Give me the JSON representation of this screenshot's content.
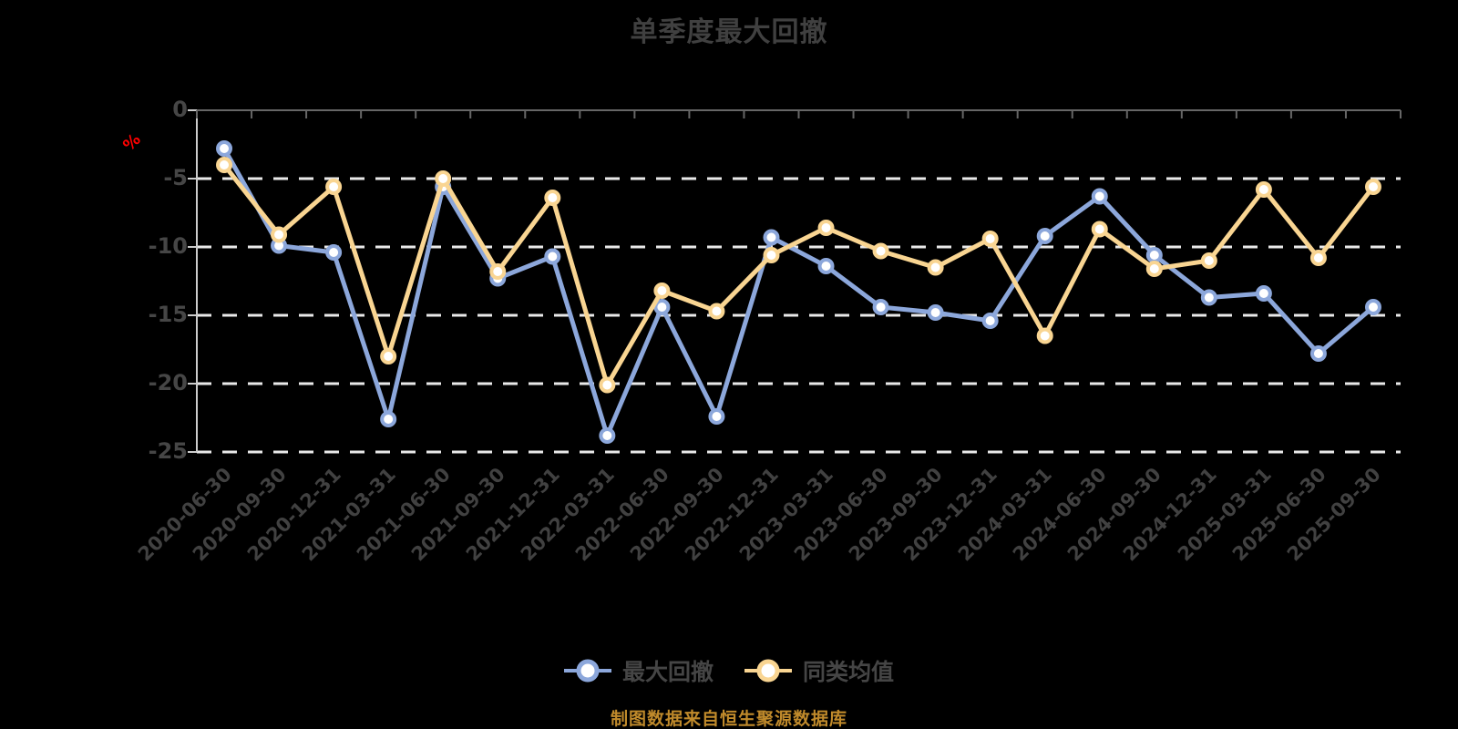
{
  "chart": {
    "title": "单季度最大回撤",
    "y_unit_label": "%",
    "source_note": "制图数据来自恒生聚源数据库"
  },
  "chart_data": {
    "type": "line",
    "title": "单季度最大回撤",
    "ylabel": "%",
    "ylim": [
      -25,
      0
    ],
    "yticks": [
      0,
      -5,
      -10,
      -15,
      -20,
      -25
    ],
    "grid": true,
    "legend_position": "bottom",
    "source_note": "制图数据来自恒生聚源数据库",
    "categories": [
      "2020-06-30",
      "2020-09-30",
      "2020-12-31",
      "2021-03-31",
      "2021-06-30",
      "2021-09-30",
      "2021-12-31",
      "2022-03-31",
      "2022-06-30",
      "2022-09-30",
      "2022-12-31",
      "2023-03-31",
      "2023-06-30",
      "2023-09-30",
      "2023-12-31",
      "2024-03-31",
      "2024-06-30",
      "2024-09-30",
      "2024-12-31",
      "2025-03-31",
      "2025-06-30",
      "2025-09-30"
    ],
    "series": [
      {
        "name": "最大回撤",
        "color": "#8CA7DB",
        "values": [
          -2.8,
          -9.9,
          -10.4,
          -22.6,
          -5.6,
          -12.3,
          -10.7,
          -23.8,
          -14.4,
          -22.4,
          -9.3,
          -11.4,
          -14.4,
          -14.8,
          -15.4,
          -9.2,
          -6.3,
          -10.6,
          -13.7,
          -13.4,
          -17.8,
          -14.4
        ]
      },
      {
        "name": "同类均值",
        "color": "#F9D592",
        "values": [
          -4.0,
          -9.1,
          -5.6,
          -18.0,
          -5.0,
          -11.8,
          -6.4,
          -20.1,
          -13.2,
          -14.7,
          -10.6,
          -8.6,
          -10.3,
          -11.5,
          -9.4,
          -16.5,
          -8.7,
          -11.6,
          -11.0,
          -5.8,
          -10.8,
          -5.6
        ]
      }
    ],
    "style": {
      "background": "#000000",
      "grid_color": "#e9e9e9",
      "top_axis_color": "#666666",
      "y_axis_color": "#cccccc",
      "label_color": "#464646",
      "unit_color": "#ff0000",
      "marker_fill": "#ffffff"
    }
  }
}
